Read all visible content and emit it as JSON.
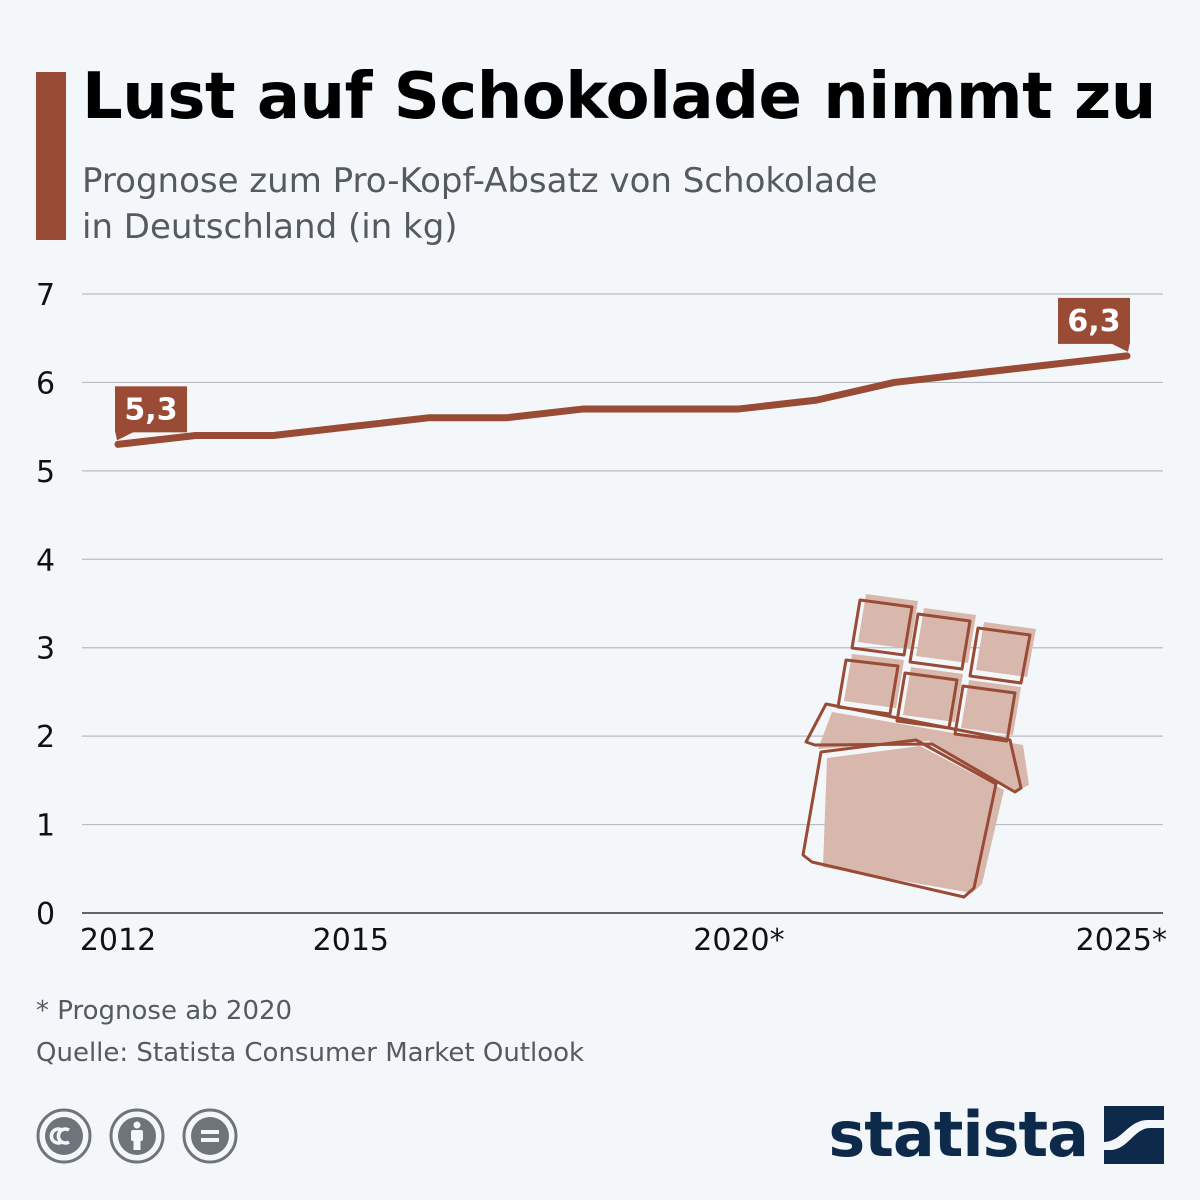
{
  "header": {
    "title": "Lust auf Schokolade nimmt zu",
    "subtitle_line1": "Prognose zum Pro-Kopf-Absatz von Schokolade",
    "subtitle_line2": "in Deutschland (in kg)"
  },
  "chart_data": {
    "type": "line",
    "title": "Lust auf Schokolade nimmt zu",
    "subtitle": "Prognose zum Pro-Kopf-Absatz von Schokolade in Deutschland (in kg)",
    "xlabel": "",
    "ylabel": "",
    "x": [
      2012,
      2013,
      2014,
      2015,
      2016,
      2017,
      2018,
      2019,
      2020,
      2021,
      2022,
      2023,
      2024,
      2025
    ],
    "series": [
      {
        "name": "Pro-Kopf-Absatz (kg)",
        "values": [
          5.3,
          5.4,
          5.4,
          5.5,
          5.6,
          5.6,
          5.7,
          5.7,
          5.7,
          5.8,
          6.0,
          6.1,
          6.2,
          6.3
        ]
      }
    ],
    "ylim": [
      0,
      7
    ],
    "yticks": [
      "0",
      "1",
      "2",
      "3",
      "4",
      "5",
      "6",
      "7"
    ],
    "xtick_values": [
      2012,
      2015,
      2020,
      2025
    ],
    "xtick_labels": [
      "2012",
      "2015",
      "2020*",
      "2025*"
    ],
    "annotations": [
      {
        "x": 2012,
        "value": 5.3,
        "text": "5,3"
      },
      {
        "x": 2025,
        "value": 6.3,
        "text": "6,3"
      }
    ],
    "grid": true
  },
  "footer": {
    "note": "* Prognose ab 2020",
    "source": "Quelle: Statista Consumer Market Outlook",
    "brand": "statista"
  },
  "icons": {
    "chocolate": "chocolate-bar-icon",
    "license": [
      "cc-icon",
      "attribution-icon",
      "no-derivatives-icon"
    ],
    "logo": "statista-logo-icon"
  },
  "colors": {
    "accent": "#9a4b35",
    "line": "#9a4b35",
    "grid": "#b9bcc0",
    "chocolate_fill": "#d8b7ad",
    "brand": "#0d2a4b",
    "cc_icons": "#6f747a"
  }
}
